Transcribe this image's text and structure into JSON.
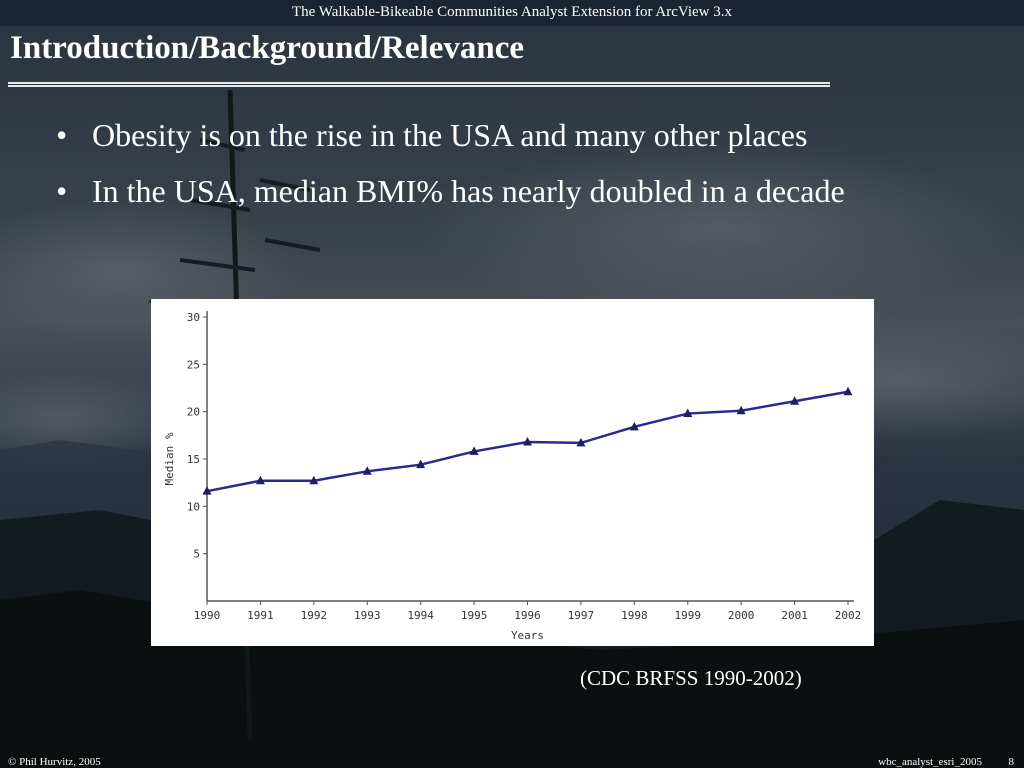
{
  "header": {
    "presentation_title": "The Walkable-Bikeable Communities Analyst Extension for ArcView 3.x"
  },
  "slide": {
    "title": "Introduction/Background/Relevance",
    "bullets": [
      "Obesity is on the rise in the USA and many other places",
      "In the USA, median BMI% has nearly doubled in a decade"
    ],
    "source_caption": "(CDC BRFSS 1990-2002)"
  },
  "footer": {
    "copyright": "© Phil Hurvitz, 2005",
    "file_name": "wbc_analyst_esri_2005",
    "page_number": "8"
  },
  "colors": {
    "line": "#2a2a8c",
    "axis": "#555555"
  },
  "chart_data": {
    "type": "line",
    "xlabel": "Years",
    "ylabel": "Median %",
    "categories": [
      "1990",
      "1991",
      "1992",
      "1993",
      "1994",
      "1995",
      "1996",
      "1997",
      "1998",
      "1999",
      "2000",
      "2001",
      "2002"
    ],
    "values": [
      11.6,
      12.7,
      12.7,
      13.7,
      14.4,
      15.8,
      16.8,
      16.7,
      18.4,
      19.8,
      20.1,
      21.1,
      22.1
    ],
    "yticks": [
      5,
      10,
      15,
      20,
      25,
      30
    ],
    "ylim": [
      0,
      30
    ],
    "grid": false,
    "legend": "none"
  }
}
